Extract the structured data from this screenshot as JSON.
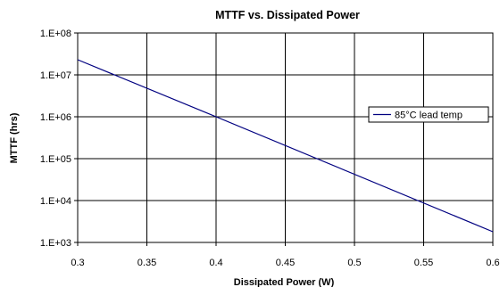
{
  "chart_data": {
    "type": "line",
    "title": "MTTF vs. Dissipated Power",
    "xlabel": "Dissipated Power (W)",
    "ylabel": "MTTF (hrs)",
    "xlim": [
      0.3,
      0.6
    ],
    "ylim": [
      1000,
      100000000
    ],
    "y_scale": "log",
    "x_ticks": [
      "0.3",
      "0.35",
      "0.4",
      "0.45",
      "0.5",
      "0.55",
      "0.6"
    ],
    "y_ticks": [
      "1.E+03",
      "1.E+04",
      "1.E+05",
      "1.E+06",
      "1.E+07",
      "1.E+08"
    ],
    "grid": true,
    "legend_position": "right",
    "series": [
      {
        "name": "85°C lead temp",
        "color": "#000080",
        "x": [
          0.3,
          0.4,
          0.6
        ],
        "y": [
          23000000,
          1000000,
          1800
        ]
      }
    ]
  }
}
